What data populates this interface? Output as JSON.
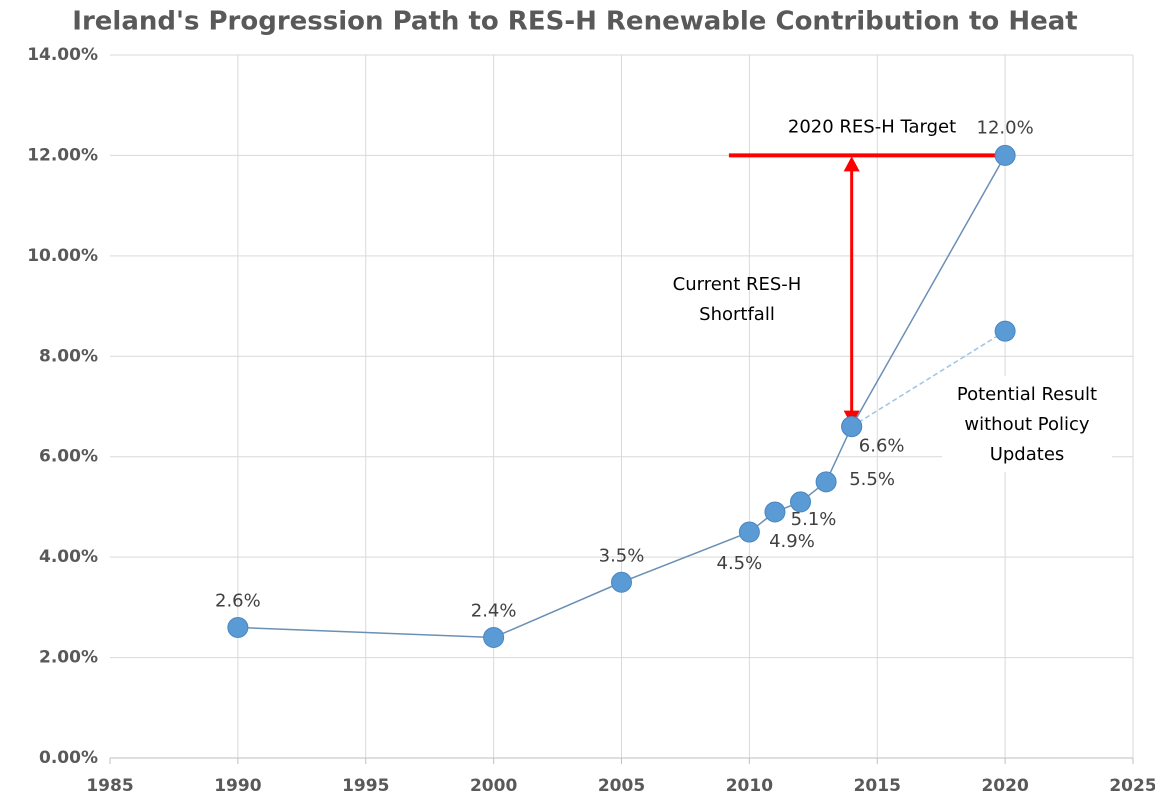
{
  "chart_data": {
    "type": "scatter",
    "title": "Ireland's Progression Path to RES-H Renewable Contribution to Heat",
    "xlim": [
      1985,
      2025
    ],
    "xticks": [
      1985,
      1990,
      1995,
      2000,
      2005,
      2010,
      2015,
      2020,
      2025
    ],
    "ylim": [
      0,
      14
    ],
    "yticks": [
      {
        "value": 0,
        "label": "0.00%"
      },
      {
        "value": 2,
        "label": "2.00%"
      },
      {
        "value": 4,
        "label": "4.00%"
      },
      {
        "value": 6,
        "label": "6.00%"
      },
      {
        "value": 8,
        "label": "8.00%"
      },
      {
        "value": 10,
        "label": "10.00%"
      },
      {
        "value": 12,
        "label": "12.00%"
      },
      {
        "value": 14,
        "label": "14.00%"
      }
    ],
    "grid": true,
    "series": [
      {
        "color": "#5b9bd5",
        "line_color": "#6b8fb5",
        "dashed": false,
        "x": [
          1990,
          2000,
          2005,
          2010,
          2011,
          2012,
          2013,
          2014,
          2020
        ],
        "values": [
          2.6,
          2.4,
          3.5,
          4.5,
          4.9,
          5.1,
          5.5,
          6.6,
          12.0
        ],
        "value_labels": [
          "2.6%",
          "2.4%",
          "3.5%",
          "4.5%",
          "4.9%",
          "5.1%",
          "5.5%",
          "6.6%",
          "12.0%"
        ]
      },
      {
        "color": "#5b9bd5",
        "line_color": "#9dc3e6",
        "dashed": true,
        "x": [
          2014,
          2020
        ],
        "values": [
          6.6,
          8.5
        ]
      }
    ],
    "target": {
      "label": "2020 RES-H Target",
      "value": 12,
      "x": [
        2009.2,
        2020
      ],
      "color": "#ff0000"
    },
    "arrow": {
      "label_lines": [
        "Current RES-H",
        "Shortfall"
      ],
      "x": 2014,
      "from": 12,
      "to": 6.6,
      "color": "#ff0000"
    },
    "note": {
      "lines": [
        "Potential Result",
        "without Policy",
        "Updates"
      ]
    }
  }
}
